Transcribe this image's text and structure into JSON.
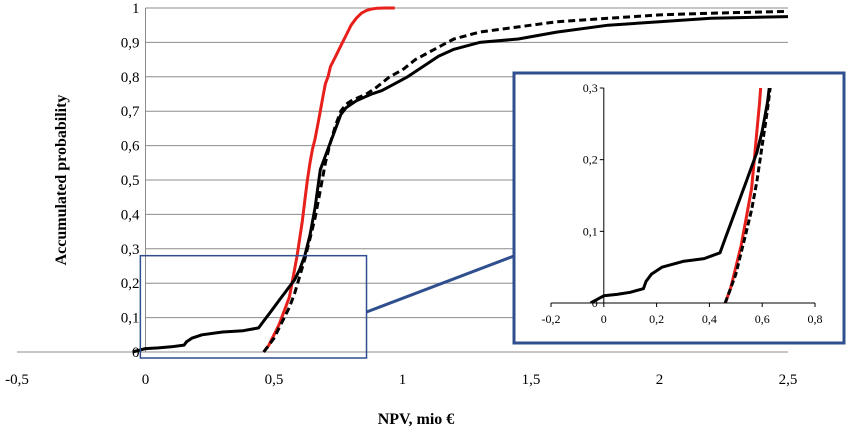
{
  "chart_data": {
    "type": "line",
    "xlabel": "NPV, mio €",
    "ylabel": "Accumulated probability",
    "xlim": [
      -0.5,
      2.5
    ],
    "ylim": [
      0,
      1
    ],
    "x_ticks": [
      "-0,5",
      "0",
      "0,5",
      "1",
      "1,5",
      "2",
      "2,5"
    ],
    "y_ticks": [
      "0",
      "0,1",
      "0,2",
      "0,3",
      "0,4",
      "0,5",
      "0,6",
      "0,7",
      "0,8",
      "0,9",
      "1"
    ],
    "grid": "horizontal",
    "colors": {
      "red": "#e8201c",
      "black": "#000000",
      "frame": "#2f4f8f",
      "grid": "#8c8c8c"
    },
    "series": [
      {
        "style": "solid",
        "color": "#e8201c",
        "x": [
          0.46,
          0.48,
          0.5,
          0.52,
          0.54,
          0.56,
          0.57,
          0.58,
          0.59,
          0.6,
          0.61,
          0.62,
          0.63,
          0.64,
          0.65,
          0.66,
          0.67,
          0.68,
          0.69,
          0.7,
          0.71,
          0.72,
          0.74,
          0.76,
          0.78,
          0.8,
          0.82,
          0.84,
          0.86,
          0.88,
          0.9,
          0.93,
          0.97
        ],
        "y": [
          0.0,
          0.02,
          0.05,
          0.08,
          0.12,
          0.16,
          0.2,
          0.24,
          0.28,
          0.33,
          0.38,
          0.44,
          0.5,
          0.55,
          0.59,
          0.62,
          0.66,
          0.7,
          0.74,
          0.78,
          0.8,
          0.83,
          0.86,
          0.89,
          0.92,
          0.95,
          0.97,
          0.985,
          0.993,
          0.997,
          0.999,
          1.0,
          1.0
        ]
      },
      {
        "style": "solid",
        "color": "#000000",
        "x": [
          -0.05,
          0.0,
          0.05,
          0.1,
          0.15,
          0.16,
          0.18,
          0.22,
          0.3,
          0.38,
          0.44,
          0.46,
          0.48,
          0.5,
          0.52,
          0.54,
          0.56,
          0.58,
          0.6,
          0.62,
          0.64,
          0.66,
          0.68,
          0.7,
          0.72,
          0.74,
          0.76,
          0.78,
          0.8,
          0.82,
          0.85,
          0.88,
          0.92,
          0.97,
          1.02,
          1.08,
          1.14,
          1.2,
          1.3,
          1.45,
          1.6,
          1.8,
          2.0,
          2.2,
          2.5
        ],
        "y": [
          0.0,
          0.01,
          0.012,
          0.015,
          0.02,
          0.03,
          0.04,
          0.05,
          0.058,
          0.062,
          0.07,
          0.09,
          0.11,
          0.13,
          0.15,
          0.17,
          0.19,
          0.21,
          0.24,
          0.28,
          0.34,
          0.42,
          0.53,
          0.57,
          0.61,
          0.65,
          0.69,
          0.71,
          0.72,
          0.73,
          0.74,
          0.75,
          0.76,
          0.78,
          0.8,
          0.83,
          0.86,
          0.88,
          0.9,
          0.91,
          0.93,
          0.95,
          0.96,
          0.97,
          0.975
        ]
      },
      {
        "style": "dashed",
        "color": "#000000",
        "x": [
          0.46,
          0.48,
          0.5,
          0.52,
          0.54,
          0.56,
          0.58,
          0.6,
          0.62,
          0.64,
          0.66,
          0.68,
          0.7,
          0.72,
          0.74,
          0.76,
          0.78,
          0.8,
          0.83,
          0.86,
          0.9,
          0.95,
          1.0,
          1.05,
          1.1,
          1.15,
          1.2,
          1.3,
          1.4,
          1.5,
          1.6,
          1.8,
          2.0,
          2.2,
          2.5
        ],
        "y": [
          0.0,
          0.02,
          0.04,
          0.07,
          0.1,
          0.13,
          0.17,
          0.22,
          0.27,
          0.33,
          0.39,
          0.47,
          0.55,
          0.61,
          0.66,
          0.7,
          0.72,
          0.73,
          0.74,
          0.75,
          0.77,
          0.8,
          0.82,
          0.85,
          0.87,
          0.89,
          0.91,
          0.93,
          0.94,
          0.95,
          0.96,
          0.97,
          0.98,
          0.985,
          0.99
        ]
      }
    ],
    "inset": {
      "xlim": [
        -0.2,
        0.8
      ],
      "ylim": [
        0,
        0.3
      ],
      "x_ticks": [
        "-0,2",
        "0",
        "0,2",
        "0,4",
        "0,6",
        "0,8"
      ],
      "y_ticks": [
        "0",
        "0,1",
        "0,2",
        "0,3"
      ],
      "zoom_region": {
        "xlim": [
          -0.02,
          0.86
        ],
        "ylim": [
          0,
          0.28
        ]
      }
    }
  }
}
